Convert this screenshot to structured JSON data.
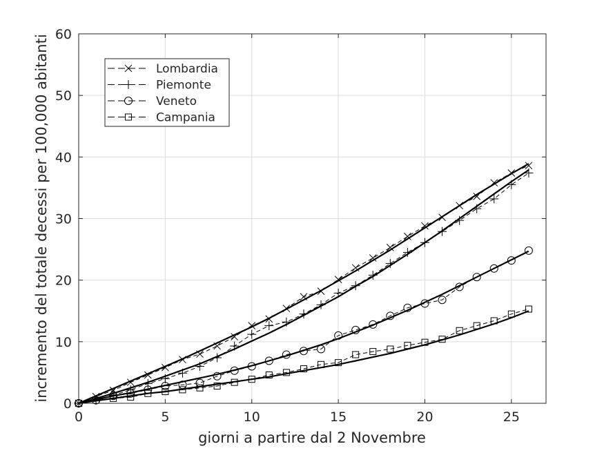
{
  "chart_data": {
    "type": "line",
    "xlabel": "giorni a partire dal 2 Novembre",
    "ylabel": "incremento del totale decessi per 100,000 abitanti",
    "xlim": [
      0,
      27
    ],
    "ylim": [
      0,
      60
    ],
    "xticks": [
      0,
      5,
      10,
      15,
      20,
      25
    ],
    "yticks": [
      0,
      10,
      20,
      30,
      40,
      50,
      60
    ],
    "grid": true,
    "legend_position": "top-left",
    "x": [
      0,
      1,
      2,
      3,
      4,
      5,
      6,
      7,
      8,
      9,
      10,
      11,
      12,
      13,
      14,
      15,
      16,
      17,
      18,
      19,
      20,
      21,
      22,
      23,
      24,
      25,
      26
    ],
    "series": [
      {
        "name": "Lombardia",
        "marker": "x",
        "line": "dashed",
        "values": [
          0,
          1.1,
          2.1,
          3.4,
          4.6,
          5.8,
          7.1,
          8.0,
          9.3,
          10.8,
          12.6,
          13.7,
          15.4,
          17.3,
          18.2,
          20.1,
          22.0,
          23.6,
          25.3,
          27.1,
          28.8,
          30.2,
          32.1,
          33.6,
          35.8,
          37.4,
          38.6
        ],
        "fit": [
          0,
          1.2,
          2.4,
          3.6,
          4.8,
          6.0,
          7.2,
          8.5,
          9.8,
          11.1,
          12.4,
          13.8,
          15.3,
          16.8,
          18.3,
          19.9,
          21.5,
          23.2,
          24.9,
          26.7,
          28.5,
          30.3,
          32.1,
          33.9,
          35.6,
          37.3,
          38.9
        ]
      },
      {
        "name": "Piemonte",
        "marker": "+",
        "line": "dashed",
        "values": [
          0,
          0.5,
          1.3,
          2.2,
          3.2,
          4.0,
          4.9,
          6.0,
          7.4,
          9.3,
          11.2,
          12.6,
          13.2,
          14.5,
          16.0,
          17.9,
          19.1,
          20.8,
          22.7,
          24.5,
          26.1,
          27.9,
          29.7,
          31.6,
          33.2,
          35.5,
          37.4
        ],
        "fit": [
          0,
          0.8,
          1.6,
          2.5,
          3.4,
          4.4,
          5.4,
          6.4,
          7.6,
          8.8,
          10.1,
          11.4,
          12.8,
          14.3,
          15.8,
          17.3,
          19.0,
          20.6,
          22.4,
          24.2,
          26.1,
          28.0,
          30.0,
          32.0,
          34.0,
          36.0,
          37.9
        ]
      },
      {
        "name": "Veneto",
        "marker": "o",
        "line": "dashed",
        "values": [
          0,
          0.5,
          1.2,
          1.6,
          2.2,
          2.8,
          3.0,
          3.3,
          4.4,
          5.3,
          6.0,
          6.9,
          7.9,
          8.5,
          8.8,
          11.0,
          11.9,
          12.8,
          14.2,
          15.5,
          16.2,
          16.8,
          18.9,
          20.5,
          21.9,
          23.2,
          24.8
        ],
        "fit": [
          0,
          0.6,
          1.2,
          1.7,
          2.3,
          2.9,
          3.5,
          4.1,
          4.7,
          5.4,
          6.1,
          6.9,
          7.7,
          8.6,
          9.5,
          10.5,
          11.6,
          12.7,
          13.9,
          15.1,
          16.4,
          17.7,
          19.1,
          20.5,
          21.9,
          23.3,
          24.7
        ]
      },
      {
        "name": "Campania",
        "marker": "s",
        "line": "dashed",
        "values": [
          0,
          0.5,
          0.8,
          1.0,
          1.6,
          1.9,
          2.2,
          2.5,
          2.8,
          3.4,
          3.9,
          4.6,
          5.0,
          5.6,
          6.3,
          6.6,
          7.9,
          8.4,
          8.8,
          9.4,
          9.9,
          10.4,
          11.8,
          12.6,
          13.4,
          14.5,
          15.3
        ],
        "fit": [
          0,
          0.4,
          0.8,
          1.2,
          1.6,
          1.9,
          2.3,
          2.7,
          3.1,
          3.5,
          3.9,
          4.3,
          4.8,
          5.3,
          5.8,
          6.3,
          6.9,
          7.5,
          8.1,
          8.8,
          9.5,
          10.3,
          11.1,
          12.0,
          12.9,
          13.9,
          15.0
        ]
      }
    ]
  },
  "colors": {
    "axes": "#262626",
    "grid": "#dcdcdc",
    "series": "#000000",
    "background": "#ffffff"
  }
}
